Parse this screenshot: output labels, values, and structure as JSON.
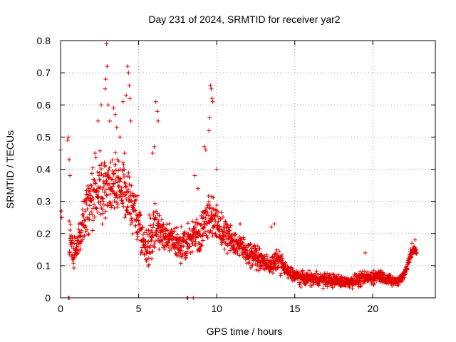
{
  "chart_data": {
    "type": "scatter",
    "title": "Day 231 of 2024, SRMTID for receiver yar2",
    "xlabel": "GPS time / hours",
    "ylabel": "SRMTID / TECUs",
    "xlim": [
      0,
      24
    ],
    "ylim": [
      0,
      0.8
    ],
    "grid": true,
    "legend": "none",
    "marker": "plus",
    "color": "#e00000",
    "x_ticks": [
      0,
      5,
      10,
      15,
      20
    ],
    "x_tick_labels": [
      "0",
      "5",
      "10",
      "15",
      "20"
    ],
    "y_ticks": [
      0,
      0.1,
      0.2,
      0.3,
      0.4,
      0.5,
      0.6,
      0.7,
      0.8
    ],
    "y_tick_labels": [
      "0",
      "0.1",
      "0.2",
      "0.3",
      "0.4",
      "0.5",
      "0.6",
      "0.7",
      "0.8"
    ],
    "series": [
      {
        "name": "SRMTID",
        "envelope": {
          "hours": [
            0,
            0.5,
            0.8,
            1,
            1.5,
            2,
            2.5,
            3,
            3.5,
            4,
            4.5,
            5,
            5.5,
            6,
            6.5,
            7,
            7.5,
            8,
            8.5,
            9,
            9.5,
            10,
            10.5,
            11,
            11.5,
            12,
            12.5,
            13,
            13.5,
            14,
            14.5,
            15,
            15.5,
            16,
            16.5,
            17,
            17.5,
            18,
            18.5,
            19,
            19.5,
            20,
            20.5,
            21,
            21.5,
            22,
            22.3,
            22.6,
            22.8
          ],
          "typical": [
            0.25,
            0.2,
            0.14,
            0.16,
            0.24,
            0.32,
            0.33,
            0.35,
            0.36,
            0.35,
            0.3,
            0.23,
            0.14,
            0.22,
            0.2,
            0.18,
            0.17,
            0.16,
            0.2,
            0.2,
            0.27,
            0.22,
            0.2,
            0.18,
            0.16,
            0.14,
            0.13,
            0.11,
            0.1,
            0.12,
            0.08,
            0.07,
            0.06,
            0.06,
            0.06,
            0.055,
            0.055,
            0.05,
            0.05,
            0.055,
            0.06,
            0.065,
            0.07,
            0.055,
            0.05,
            0.07,
            0.12,
            0.15,
            0.14
          ],
          "spread": [
            0.08,
            0.08,
            0.06,
            0.07,
            0.1,
            0.14,
            0.16,
            0.14,
            0.14,
            0.14,
            0.12,
            0.1,
            0.08,
            0.12,
            0.08,
            0.07,
            0.07,
            0.07,
            0.07,
            0.08,
            0.1,
            0.09,
            0.07,
            0.06,
            0.06,
            0.05,
            0.05,
            0.04,
            0.04,
            0.05,
            0.03,
            0.03,
            0.03,
            0.03,
            0.03,
            0.03,
            0.03,
            0.025,
            0.025,
            0.03,
            0.03,
            0.03,
            0.03,
            0.025,
            0.02,
            0.025,
            0.03,
            0.02,
            0.02
          ]
        },
        "points": [
          [
            0.0,
            0.46
          ],
          [
            0.05,
            0.27
          ],
          [
            0.08,
            0.25
          ],
          [
            0.45,
            0.49
          ],
          [
            0.5,
            0.5
          ],
          [
            0.55,
            0.43
          ],
          [
            0.6,
            0.38
          ],
          [
            2.2,
            0.45
          ],
          [
            2.4,
            0.55
          ],
          [
            2.6,
            0.6
          ],
          [
            2.95,
            0.79
          ],
          [
            2.98,
            0.72
          ],
          [
            2.9,
            0.68
          ],
          [
            2.85,
            0.65
          ],
          [
            3.05,
            0.6
          ],
          [
            3.15,
            0.55
          ],
          [
            3.4,
            0.59
          ],
          [
            3.5,
            0.57
          ],
          [
            3.6,
            0.53
          ],
          [
            3.8,
            0.5
          ],
          [
            4.0,
            0.61
          ],
          [
            4.2,
            0.63
          ],
          [
            4.3,
            0.72
          ],
          [
            4.35,
            0.7
          ],
          [
            4.4,
            0.66
          ],
          [
            4.45,
            0.62
          ],
          [
            4.5,
            0.55
          ],
          [
            4.1,
            0.45
          ],
          [
            6.1,
            0.61
          ],
          [
            6.2,
            0.58
          ],
          [
            6.25,
            0.55
          ],
          [
            6.0,
            0.47
          ],
          [
            5.9,
            0.45
          ],
          [
            8.6,
            0.38
          ],
          [
            8.8,
            0.34
          ],
          [
            9.2,
            0.47
          ],
          [
            9.3,
            0.46
          ],
          [
            9.5,
            0.52
          ],
          [
            9.55,
            0.56
          ],
          [
            9.6,
            0.66
          ],
          [
            9.65,
            0.65
          ],
          [
            9.7,
            0.62
          ],
          [
            9.75,
            0.61
          ],
          [
            10.0,
            0.4
          ],
          [
            11.5,
            0.23
          ],
          [
            13.5,
            0.22
          ],
          [
            13.7,
            0.23
          ],
          [
            19.5,
            0.14
          ],
          [
            22.5,
            0.17
          ],
          [
            22.7,
            0.18
          ],
          [
            0.5,
            0.0
          ],
          [
            0.55,
            0.0
          ],
          [
            8.1,
            0.0
          ],
          [
            8.15,
            0.0
          ],
          [
            8.5,
            0.0
          ]
        ]
      }
    ]
  }
}
